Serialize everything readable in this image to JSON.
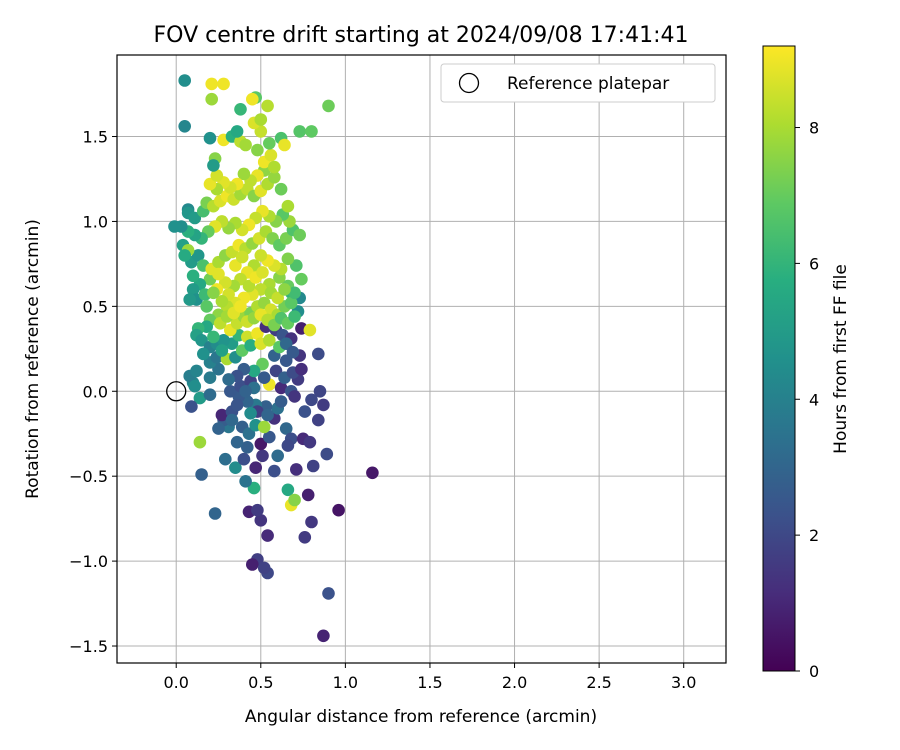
{
  "chart_data": {
    "type": "scatter",
    "title": "FOV centre drift starting at 2024/09/08 17:41:41",
    "xlabel": "Angular distance from reference (arcmin)",
    "ylabel": "Rotation from reference (arcmin)",
    "xlim": [
      -0.35,
      3.25
    ],
    "ylim": [
      -1.6,
      1.98
    ],
    "xticks": [
      0.0,
      0.5,
      1.0,
      1.5,
      2.0,
      2.5,
      3.0
    ],
    "xtick_labels": [
      "0.0",
      "0.5",
      "1.0",
      "1.5",
      "2.0",
      "2.5",
      "3.0"
    ],
    "yticks": [
      -1.5,
      -1.0,
      -0.5,
      0.0,
      0.5,
      1.0,
      1.5
    ],
    "ytick_labels": [
      "−1.5",
      "−1.0",
      "−0.5",
      "0.0",
      "0.5",
      "1.0",
      "1.5"
    ],
    "grid": true,
    "legend": {
      "label": "Reference platepar",
      "position": "top-right"
    },
    "reference_point": {
      "x": 0.0,
      "y": 0.0
    },
    "colorbar": {
      "label": "Hours from first FF file",
      "min": 0,
      "max": 9.2,
      "colormap": "viridis",
      "ticks": [
        0,
        2,
        4,
        6,
        8
      ],
      "tick_labels": [
        "0",
        "2",
        "4",
        "6",
        "8"
      ]
    },
    "points": [
      [
        0.87,
        -1.44,
        0.9
      ],
      [
        0.9,
        -1.19,
        2.3
      ],
      [
        1.16,
        -0.48,
        0.6
      ],
      [
        0.96,
        -0.7,
        0.5
      ],
      [
        0.8,
        -0.77,
        1.5
      ],
      [
        0.76,
        -0.86,
        1.6
      ],
      [
        0.54,
        -1.07,
        2.0
      ],
      [
        0.48,
        -0.99,
        1.7
      ],
      [
        0.45,
        -1.02,
        0.8
      ],
      [
        0.52,
        -1.04,
        1.8
      ],
      [
        0.54,
        -0.85,
        1.1
      ],
      [
        0.43,
        -0.71,
        0.9
      ],
      [
        0.5,
        -0.76,
        1.4
      ],
      [
        0.48,
        -0.7,
        1.6
      ],
      [
        0.23,
        -0.72,
        3.0
      ],
      [
        0.15,
        -0.49,
        2.8
      ],
      [
        0.66,
        -0.58,
        5.5
      ],
      [
        0.68,
        -0.67,
        8.9
      ],
      [
        0.7,
        -0.64,
        7.5
      ],
      [
        0.78,
        -0.61,
        0.8
      ],
      [
        0.81,
        -0.44,
        1.8
      ],
      [
        0.89,
        -0.37,
        2.1
      ],
      [
        0.71,
        -0.46,
        1.2
      ],
      [
        0.58,
        -0.47,
        2.2
      ],
      [
        0.46,
        -0.57,
        5.8
      ],
      [
        0.41,
        -0.53,
        3.5
      ],
      [
        0.47,
        -0.45,
        1.0
      ],
      [
        0.51,
        -0.38,
        1.5
      ],
      [
        0.5,
        -0.31,
        0.6
      ],
      [
        0.55,
        -0.27,
        2.5
      ],
      [
        0.29,
        -0.4,
        3.3
      ],
      [
        0.35,
        -0.45,
        4.4
      ],
      [
        0.42,
        -0.33,
        2.8
      ],
      [
        0.31,
        -0.21,
        3.6
      ],
      [
        0.28,
        -0.17,
        2.7
      ],
      [
        0.27,
        -0.14,
        1.0
      ],
      [
        0.33,
        -0.12,
        2.3
      ],
      [
        0.39,
        -0.21,
        2.8
      ],
      [
        0.43,
        -0.25,
        3.4
      ],
      [
        0.47,
        -0.2,
        4.6
      ],
      [
        0.52,
        -0.21,
        7.8
      ],
      [
        0.58,
        -0.16,
        1.3
      ],
      [
        0.65,
        -0.22,
        3.1
      ],
      [
        0.68,
        -0.28,
        2.2
      ],
      [
        0.75,
        -0.28,
        1.1
      ],
      [
        0.79,
        -0.3,
        1.5
      ],
      [
        0.84,
        -0.17,
        1.8
      ],
      [
        0.76,
        -0.12,
        2.3
      ],
      [
        0.6,
        -0.1,
        3.4
      ],
      [
        0.53,
        -0.09,
        2.8
      ],
      [
        0.47,
        -0.08,
        3.7
      ],
      [
        0.42,
        -0.06,
        3.0
      ],
      [
        0.37,
        -0.03,
        2.6
      ],
      [
        0.32,
        0.0,
        2.5
      ],
      [
        0.38,
        0.03,
        2.2
      ],
      [
        0.44,
        0.06,
        1.8
      ],
      [
        0.55,
        0.04,
        9.0
      ],
      [
        0.62,
        0.02,
        1.1
      ],
      [
        0.68,
        0.0,
        2.4
      ],
      [
        0.72,
        0.07,
        1.6
      ],
      [
        0.85,
        0.0,
        1.9
      ],
      [
        0.84,
        0.22,
        2.1
      ],
      [
        0.73,
        0.21,
        1.4
      ],
      [
        0.65,
        0.18,
        2.5
      ],
      [
        0.58,
        0.21,
        2.9
      ],
      [
        0.51,
        0.16,
        7.0
      ],
      [
        0.46,
        0.12,
        5.5
      ],
      [
        0.4,
        0.13,
        2.7
      ],
      [
        0.36,
        0.09,
        2.3
      ],
      [
        0.31,
        0.07,
        3.2
      ],
      [
        0.25,
        0.13,
        3.5
      ],
      [
        0.2,
        0.08,
        3.8
      ],
      [
        0.1,
        0.05,
        4.2
      ],
      [
        0.08,
        0.09,
        3.9
      ],
      [
        0.11,
        0.03,
        4.5
      ],
      [
        0.14,
        -0.04,
        5.0
      ],
      [
        0.09,
        -0.09,
        2.3
      ],
      [
        0.14,
        -0.3,
        7.8
      ],
      [
        0.2,
        -0.02,
        3.2
      ],
      [
        0.2,
        0.17,
        4.0
      ],
      [
        0.24,
        0.2,
        3.6
      ],
      [
        0.3,
        0.19,
        8.0
      ],
      [
        0.33,
        0.28,
        5.0
      ],
      [
        0.37,
        0.33,
        6.0
      ],
      [
        0.42,
        0.32,
        8.5
      ],
      [
        0.48,
        0.34,
        9.0
      ],
      [
        0.53,
        0.38,
        1.2
      ],
      [
        0.59,
        0.36,
        1.7
      ],
      [
        0.63,
        0.33,
        2.4
      ],
      [
        0.68,
        0.31,
        1.3
      ],
      [
        0.74,
        0.37,
        0.8
      ],
      [
        0.79,
        0.36,
        8.8
      ],
      [
        0.72,
        0.47,
        4.5
      ],
      [
        0.73,
        0.55,
        4.3
      ],
      [
        0.68,
        0.58,
        6.0
      ],
      [
        0.66,
        0.62,
        7.0
      ],
      [
        0.61,
        0.67,
        7.5
      ],
      [
        0.55,
        0.63,
        8.0
      ],
      [
        0.5,
        0.6,
        8.3
      ],
      [
        0.45,
        0.57,
        8.8
      ],
      [
        0.4,
        0.55,
        9.0
      ],
      [
        0.35,
        0.52,
        8.7
      ],
      [
        0.3,
        0.5,
        8.2
      ],
      [
        0.25,
        0.45,
        7.6
      ],
      [
        0.2,
        0.42,
        7.0
      ],
      [
        0.18,
        0.38,
        5.5
      ],
      [
        0.13,
        0.37,
        6.0
      ],
      [
        0.12,
        0.33,
        5.2
      ],
      [
        0.15,
        0.3,
        4.8
      ],
      [
        0.2,
        0.26,
        4.0
      ],
      [
        0.24,
        0.28,
        4.4
      ],
      [
        0.28,
        0.3,
        4.7
      ],
      [
        0.32,
        0.36,
        8.9
      ],
      [
        0.36,
        0.4,
        8.4
      ],
      [
        0.4,
        0.44,
        7.8
      ],
      [
        0.44,
        0.46,
        7.3
      ],
      [
        0.48,
        0.5,
        8.1
      ],
      [
        0.52,
        0.52,
        7.7
      ],
      [
        0.56,
        0.48,
        8.6
      ],
      [
        0.6,
        0.45,
        8.0
      ],
      [
        0.64,
        0.5,
        7.2
      ],
      [
        0.68,
        0.52,
        6.8
      ],
      [
        0.7,
        0.58,
        6.3
      ],
      [
        0.74,
        0.66,
        7.0
      ],
      [
        0.71,
        0.74,
        6.6
      ],
      [
        0.66,
        0.78,
        7.4
      ],
      [
        0.62,
        0.72,
        8.2
      ],
      [
        0.58,
        0.74,
        8.7
      ],
      [
        0.54,
        0.77,
        9.0
      ],
      [
        0.5,
        0.8,
        8.5
      ],
      [
        0.46,
        0.74,
        8.1
      ],
      [
        0.42,
        0.7,
        8.9
      ],
      [
        0.38,
        0.66,
        8.3
      ],
      [
        0.34,
        0.62,
        7.9
      ],
      [
        0.29,
        0.64,
        8.6
      ],
      [
        0.24,
        0.6,
        9.0
      ],
      [
        0.2,
        0.66,
        7.2
      ],
      [
        0.14,
        0.63,
        5.5
      ],
      [
        0.1,
        0.6,
        5.0
      ],
      [
        0.12,
        0.54,
        4.6
      ],
      [
        0.17,
        0.57,
        6.2
      ],
      [
        0.08,
        0.54,
        4.9
      ],
      [
        0.1,
        0.68,
        5.8
      ],
      [
        0.09,
        0.76,
        5.0
      ],
      [
        0.13,
        0.8,
        4.8
      ],
      [
        0.16,
        0.74,
        6.5
      ],
      [
        0.21,
        0.72,
        8.8
      ],
      [
        0.25,
        0.76,
        8.0
      ],
      [
        0.29,
        0.8,
        7.6
      ],
      [
        0.33,
        0.82,
        8.4
      ],
      [
        0.37,
        0.86,
        9.0
      ],
      [
        0.41,
        0.84,
        8.2
      ],
      [
        0.45,
        0.87,
        7.7
      ],
      [
        0.49,
        0.9,
        8.6
      ],
      [
        0.53,
        0.94,
        8.0
      ],
      [
        0.57,
        0.9,
        7.4
      ],
      [
        0.61,
        0.86,
        6.9
      ],
      [
        0.65,
        0.9,
        7.3
      ],
      [
        0.69,
        0.95,
        6.6
      ],
      [
        0.73,
        0.92,
        7.1
      ],
      [
        0.67,
        1.0,
        7.8
      ],
      [
        0.63,
        1.04,
        6.8
      ],
      [
        0.59,
        1.0,
        7.5
      ],
      [
        0.55,
        1.03,
        8.1
      ],
      [
        0.51,
        1.06,
        8.9
      ],
      [
        0.47,
        1.02,
        8.4
      ],
      [
        0.43,
        0.98,
        9.0
      ],
      [
        0.39,
        0.95,
        8.6
      ],
      [
        0.35,
        0.99,
        8.0
      ],
      [
        0.31,
        0.96,
        7.7
      ],
      [
        0.27,
        1.0,
        8.3
      ],
      [
        0.23,
        0.97,
        8.8
      ],
      [
        0.19,
        0.94,
        7.0
      ],
      [
        0.15,
        0.9,
        6.0
      ],
      [
        0.11,
        0.92,
        5.3
      ],
      [
        0.07,
        0.94,
        5.8
      ],
      [
        0.04,
        0.86,
        5.2
      ],
      [
        0.07,
        0.83,
        7.8
      ],
      [
        0.05,
        0.8,
        5.6
      ],
      [
        0.03,
        0.97,
        4.5
      ],
      [
        -0.01,
        0.97,
        4.6
      ],
      [
        0.07,
        1.07,
        4.3
      ],
      [
        0.07,
        1.05,
        4.8
      ],
      [
        0.11,
        1.02,
        5.0
      ],
      [
        0.16,
        1.06,
        6.4
      ],
      [
        0.18,
        1.11,
        7.3
      ],
      [
        0.22,
        1.09,
        8.2
      ],
      [
        0.26,
        1.12,
        8.7
      ],
      [
        0.3,
        1.15,
        9.0
      ],
      [
        0.34,
        1.13,
        8.5
      ],
      [
        0.38,
        1.16,
        7.9
      ],
      [
        0.42,
        1.19,
        8.3
      ],
      [
        0.46,
        1.15,
        7.5
      ],
      [
        0.5,
        1.18,
        8.8
      ],
      [
        0.54,
        1.22,
        8.1
      ],
      [
        0.58,
        1.26,
        7.7
      ],
      [
        0.62,
        1.19,
        7.1
      ],
      [
        0.66,
        1.09,
        8.0
      ],
      [
        0.52,
        1.3,
        7.6
      ],
      [
        0.48,
        1.27,
        8.9
      ],
      [
        0.44,
        1.24,
        8.3
      ],
      [
        0.4,
        1.28,
        7.8
      ],
      [
        0.36,
        1.22,
        9.0
      ],
      [
        0.32,
        1.2,
        8.6
      ],
      [
        0.28,
        1.23,
        8.8
      ],
      [
        0.24,
        1.19,
        8.0
      ],
      [
        0.2,
        1.22,
        8.9
      ],
      [
        0.24,
        1.27,
        8.6
      ],
      [
        0.23,
        1.37,
        7.5
      ],
      [
        0.22,
        1.33,
        5.0
      ],
      [
        0.2,
        1.49,
        4.6
      ],
      [
        0.28,
        1.48,
        9.0
      ],
      [
        0.33,
        1.5,
        5.8
      ],
      [
        0.38,
        1.47,
        8.3
      ],
      [
        0.41,
        1.45,
        7.9
      ],
      [
        0.48,
        1.42,
        7.5
      ],
      [
        0.52,
        1.35,
        9.0
      ],
      [
        0.56,
        1.39,
        8.7
      ],
      [
        0.58,
        1.32,
        8.1
      ],
      [
        0.55,
        1.46,
        7.0
      ],
      [
        0.5,
        1.53,
        8.4
      ],
      [
        0.46,
        1.58,
        8.7
      ],
      [
        0.5,
        1.6,
        8.0
      ],
      [
        0.54,
        1.68,
        8.2
      ],
      [
        0.47,
        1.73,
        6.8
      ],
      [
        0.45,
        1.72,
        9.0
      ],
      [
        0.38,
        1.66,
        6.1
      ],
      [
        0.28,
        1.81,
        9.0
      ],
      [
        0.21,
        1.81,
        9.0
      ],
      [
        0.21,
        1.72,
        7.8
      ],
      [
        0.05,
        1.83,
        4.5
      ],
      [
        0.05,
        1.56,
        4.2
      ],
      [
        0.36,
        1.53,
        5.5
      ],
      [
        0.62,
        1.49,
        6.5
      ],
      [
        0.64,
        1.45,
        8.9
      ],
      [
        0.73,
        1.53,
        6.7
      ],
      [
        0.8,
        1.53,
        6.9
      ],
      [
        0.9,
        1.68,
        7.1
      ],
      [
        0.35,
        0.74,
        8.9
      ],
      [
        0.39,
        0.79,
        8.5
      ],
      [
        0.43,
        0.62,
        8.2
      ],
      [
        0.47,
        0.67,
        9.0
      ],
      [
        0.51,
        0.7,
        8.7
      ],
      [
        0.56,
        0.58,
        7.9
      ],
      [
        0.6,
        0.55,
        8.4
      ],
      [
        0.64,
        0.6,
        7.6
      ],
      [
        0.31,
        0.57,
        8.6
      ],
      [
        0.27,
        0.53,
        8.0
      ],
      [
        0.25,
        0.69,
        8.8
      ],
      [
        0.22,
        0.58,
        7.5
      ],
      [
        0.18,
        0.5,
        6.8
      ],
      [
        0.26,
        0.4,
        8.3
      ],
      [
        0.3,
        0.44,
        7.9
      ],
      [
        0.34,
        0.46,
        8.8
      ],
      [
        0.38,
        0.5,
        9.0
      ],
      [
        0.42,
        0.41,
        8.5
      ],
      [
        0.46,
        0.43,
        7.7
      ],
      [
        0.5,
        0.45,
        8.9
      ],
      [
        0.54,
        0.42,
        8.2
      ],
      [
        0.58,
        0.39,
        7.3
      ],
      [
        0.62,
        0.43,
        6.6
      ],
      [
        0.66,
        0.4,
        7.0
      ],
      [
        0.7,
        0.44,
        6.2
      ],
      [
        0.12,
        0.12,
        4.1
      ],
      [
        0.16,
        0.22,
        4.6
      ],
      [
        0.22,
        0.32,
        6.1
      ],
      [
        0.27,
        0.24,
        5.2
      ],
      [
        0.35,
        0.2,
        4.5
      ],
      [
        0.39,
        0.24,
        6.9
      ],
      [
        0.44,
        0.27,
        5.7
      ],
      [
        0.5,
        0.28,
        8.7
      ],
      [
        0.55,
        0.3,
        8.1
      ],
      [
        0.61,
        0.26,
        6.8
      ],
      [
        0.65,
        0.28,
        3.1
      ],
      [
        0.69,
        0.23,
        2.6
      ],
      [
        0.59,
        0.12,
        1.9
      ],
      [
        0.64,
        0.08,
        2.8
      ],
      [
        0.69,
        0.11,
        2.1
      ],
      [
        0.74,
        0.13,
        1.2
      ],
      [
        0.52,
        0.08,
        2.6
      ],
      [
        0.46,
        0.02,
        3.4
      ],
      [
        0.41,
        0.0,
        2.9
      ],
      [
        0.36,
        -0.08,
        2.4
      ],
      [
        0.48,
        -0.12,
        1.7
      ],
      [
        0.54,
        -0.14,
        3.0
      ],
      [
        0.62,
        -0.06,
        2.7
      ],
      [
        0.7,
        -0.03,
        1.4
      ],
      [
        0.8,
        -0.05,
        2.0
      ],
      [
        0.87,
        -0.08,
        1.6
      ],
      [
        0.66,
        -0.32,
        2.0
      ],
      [
        0.6,
        -0.38,
        3.2
      ],
      [
        0.4,
        -0.4,
        2.2
      ],
      [
        0.36,
        -0.3,
        3.0
      ],
      [
        0.44,
        -0.13,
        4.4
      ],
      [
        0.33,
        -0.17,
        3.1
      ],
      [
        0.25,
        -0.22,
        2.9
      ]
    ]
  }
}
